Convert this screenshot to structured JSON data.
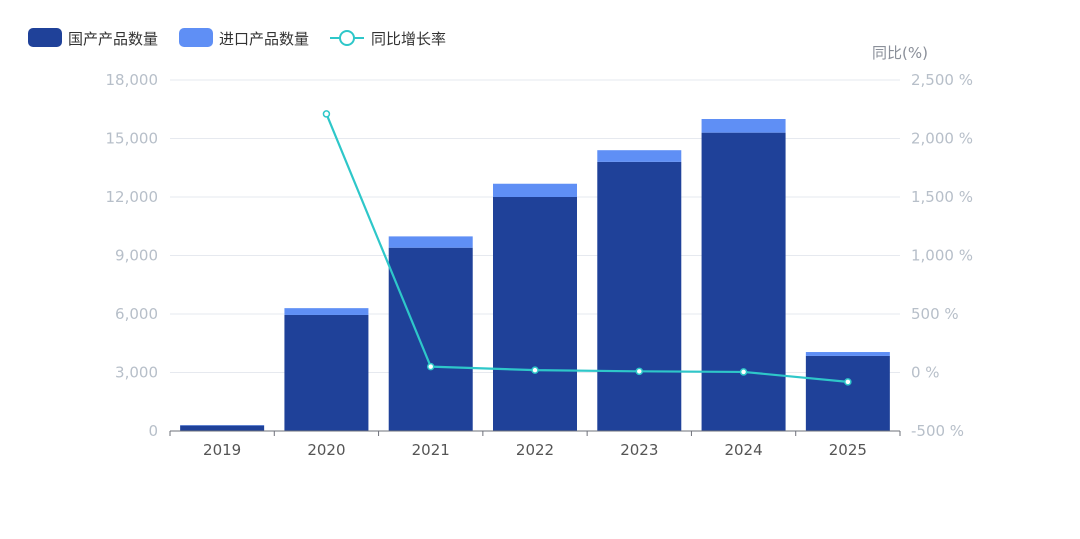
{
  "chart_data": {
    "type": "bar",
    "categories": [
      "2019",
      "2020",
      "2021",
      "2022",
      "2023",
      "2024",
      "2025"
    ],
    "series": [
      {
        "name": "国产产品数量",
        "kind": "bar",
        "stack": "total",
        "axis": "left",
        "color": "#1f4199",
        "values": [
          280,
          5950,
          9400,
          12000,
          13800,
          15300,
          3850
        ]
      },
      {
        "name": "进口产品数量",
        "kind": "bar",
        "stack": "total",
        "axis": "left",
        "color": "#5f8ff5",
        "values": [
          20,
          350,
          580,
          680,
          600,
          700,
          200
        ]
      },
      {
        "name": "同比增长率",
        "kind": "line",
        "axis": "right",
        "color": "#2ec7c9",
        "values": [
          null,
          2210,
          50,
          20,
          10,
          5,
          -80
        ]
      }
    ],
    "y_left": {
      "min": 0,
      "max": 18000,
      "ticks": [
        "0",
        "3,000",
        "6,000",
        "9,000",
        "12,000",
        "15,000",
        "18,000"
      ]
    },
    "y_right": {
      "name": "同比(%)",
      "min": -500,
      "max": 2500,
      "ticks": [
        "-500 %",
        "0 %",
        "500 %",
        "1,000 %",
        "1,500 %",
        "2,000 %",
        "2,500 %"
      ]
    },
    "legend_position": "top-left",
    "grid": true
  }
}
